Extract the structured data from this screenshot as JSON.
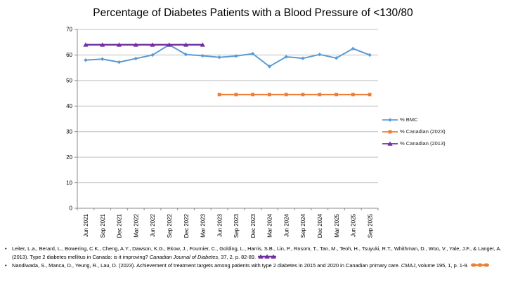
{
  "title": "Percentage of Diabetes Patients with a Blood Pressure of <130/80",
  "chart_data": {
    "type": "line",
    "title": "Percentage of Diabetes Patients with a Blood Pressure of <130/80",
    "categories": [
      "Jun 2021",
      "Sep 2021",
      "Dec 2021",
      "Mar 2022",
      "Jun 2022",
      "Sep 2022",
      "Dec 2022",
      "Mar 2023",
      "Jun 2023",
      "Sep 2023",
      "Dec 2023",
      "Mar 2024",
      "Jun 2024",
      "Sep 2024",
      "Dec 2024",
      "Mar 2025",
      "Jun 2025",
      "Sep 2025"
    ],
    "series": [
      {
        "name": "% BMC",
        "color": "#5B9BD5",
        "marker": "diamond",
        "values": [
          58,
          58.4,
          57.2,
          58.6,
          60,
          64,
          60.2,
          59.7,
          59.1,
          59.6,
          60.5,
          55.5,
          59.3,
          58.7,
          60.2,
          58.8,
          62.5,
          60
        ]
      },
      {
        "name": "% Canadian (2023)",
        "color": "#ED7D31",
        "marker": "square",
        "values": [
          null,
          null,
          null,
          null,
          null,
          null,
          null,
          null,
          44.5,
          44.5,
          44.5,
          44.5,
          44.5,
          44.5,
          44.5,
          44.5,
          44.5,
          44.5
        ]
      },
      {
        "name": "% Canadian (2013)",
        "color": "#7030A0",
        "marker": "triangle",
        "values": [
          64,
          64,
          64,
          64,
          64,
          64,
          64,
          64,
          null,
          null,
          null,
          null,
          null,
          null,
          null,
          null,
          null,
          null
        ]
      }
    ],
    "ylim": [
      0,
      70
    ],
    "yticks": [
      0,
      10,
      20,
      30,
      40,
      50,
      60,
      70
    ],
    "xlabel": "",
    "ylabel": "",
    "grid": "horizontal",
    "legend_position": "right",
    "gridline_color": "#BFBFBF",
    "axis_color": "#898989",
    "tick_label_color": "#000000"
  },
  "footnotes": [
    {
      "bullet": "•",
      "prefix": "Leiter, L.a., Berard, L., Bowering, C.K., Cheng, A.Y., Dawson, K.G., Ekow, J., Fournier, C., Golding, L., Harris, S.B., Lin, P., Rnsom, T., Tan, M., Teoh, H., Tsuyuki, R.T., Whithman, D., Woo, V., Yale, J.F., & Langer, A. (2013). Type 2 diabetes mellitus in Canada: is it improving? ",
      "italic": "Canadian Journal of Diabetes",
      "suffix": ", 37, 2, p. 82-89. ",
      "end_marker": "purple-triangle-series-glyph"
    },
    {
      "bullet": "•",
      "prefix": "Nandiwada, S., Manca, D., Yeung, R., Lau, D. (2023). Achievement of treatment targets among patients with type 2 diabetes in 2015 and 2020 in Canadian primary care. ",
      "italic": "CMAJ",
      "suffix": ", volume 195, 1, p. 1-9. ",
      "end_marker": "orange-square-series-glyph"
    }
  ]
}
